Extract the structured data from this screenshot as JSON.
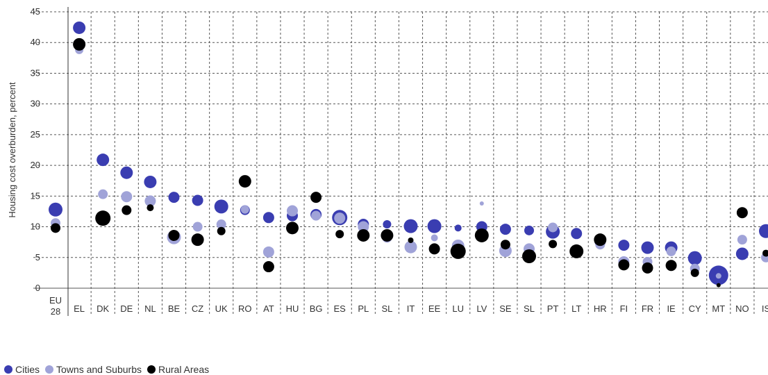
{
  "chart_data": {
    "type": "scatter",
    "title": "",
    "xlabel": "",
    "ylabel": "Housing cost overburden, percent",
    "ylim": [
      0,
      45
    ],
    "yticks": [
      0,
      5,
      10,
      15,
      20,
      25,
      30,
      35,
      40,
      45
    ],
    "grid": true,
    "legend_position": "bottom-left",
    "categories": [
      [
        "EU",
        "28"
      ],
      [
        "EL"
      ],
      [
        "DK"
      ],
      [
        "DE"
      ],
      [
        "NL"
      ],
      [
        "BE"
      ],
      [
        "CZ"
      ],
      [
        "UK"
      ],
      [
        "RO"
      ],
      [
        "AT"
      ],
      [
        "HU"
      ],
      [
        "BG"
      ],
      [
        "ES"
      ],
      [
        "PL"
      ],
      [
        "SL"
      ],
      [
        "IT"
      ],
      [
        "EE"
      ],
      [
        "LU"
      ],
      [
        "LV"
      ],
      [
        "SE"
      ],
      [
        "SL"
      ],
      [
        "PT"
      ],
      [
        "LT"
      ],
      [
        "HR"
      ],
      [
        "FI"
      ],
      [
        "FR"
      ],
      [
        "IE"
      ],
      [
        "CY"
      ],
      [
        "MT"
      ],
      [
        "NO"
      ],
      [
        "IS"
      ]
    ],
    "series": [
      {
        "name": "Cities",
        "color": "#3a3db1",
        "values": [
          12.8,
          42.4,
          20.9,
          18.8,
          17.3,
          14.8,
          14.3,
          13.3,
          12.7,
          11.5,
          11.8,
          12.0,
          11.5,
          10.4,
          10.4,
          10.1,
          10.1,
          9.8,
          10.0,
          9.6,
          9.4,
          9.2,
          8.9,
          7.6,
          7.0,
          6.6,
          6.6,
          4.9,
          2.1,
          5.6,
          9.3
        ],
        "sizes": [
          10,
          9,
          9,
          9,
          9,
          8,
          8,
          10,
          7,
          8,
          8,
          8,
          11,
          8,
          6,
          10,
          10,
          5,
          8,
          8,
          7,
          10,
          8,
          8,
          8,
          9,
          9,
          10,
          14,
          9,
          10
        ]
      },
      {
        "name": "Towns and Suburbs",
        "color": "#a0a3d8",
        "values": [
          10.6,
          38.8,
          15.3,
          14.9,
          14.2,
          8.3,
          10.0,
          10.4,
          12.8,
          5.9,
          12.6,
          11.8,
          11.4,
          10.0,
          8.2,
          6.7,
          8.2,
          6.9,
          13.8,
          6.1,
          6.4,
          9.9,
          5.5,
          7.1,
          4.3,
          4.3,
          6.0,
          3.2,
          2.0,
          7.9,
          5.0
        ],
        "sizes": [
          7,
          6,
          7,
          8,
          8,
          10,
          7,
          7,
          6,
          8,
          8,
          7,
          8,
          8,
          7,
          9,
          5,
          9,
          3,
          9,
          8,
          7,
          3,
          7,
          8,
          7,
          7,
          7,
          4,
          7,
          7
        ]
      },
      {
        "name": "Rural Areas",
        "color": "#000000",
        "values": [
          9.8,
          39.7,
          11.4,
          12.7,
          13.1,
          8.6,
          7.9,
          9.3,
          17.4,
          3.5,
          9.8,
          14.8,
          8.8,
          8.6,
          8.6,
          7.8,
          6.4,
          6.0,
          8.6,
          7.1,
          5.2,
          7.2,
          6.0,
          7.9,
          3.8,
          3.3,
          3.7,
          2.5,
          0.5,
          12.3,
          5.7
        ],
        "sizes": [
          7,
          9,
          11,
          7,
          5,
          8,
          9,
          6,
          9,
          8,
          9,
          8,
          6,
          9,
          9,
          4,
          8,
          11,
          10,
          7,
          10,
          6,
          10,
          9,
          8,
          8,
          8,
          6,
          3,
          8,
          5
        ]
      }
    ]
  },
  "legend": {
    "cities": "Cities",
    "towns": "Towns and Suburbs",
    "rural": "Rural Areas"
  }
}
